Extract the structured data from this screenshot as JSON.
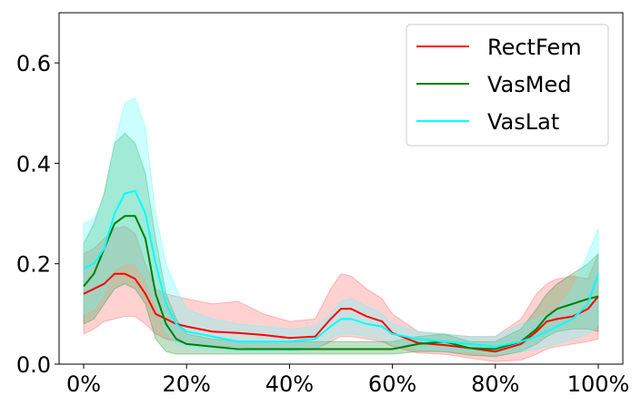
{
  "chart_data": {
    "type": "line",
    "title": "",
    "xlabel": "",
    "ylabel": "",
    "xlim": [
      0,
      100
    ],
    "ylim": [
      0,
      0.7
    ],
    "x_ticks": [
      0,
      20,
      40,
      60,
      80,
      100
    ],
    "x_tick_labels": [
      "0%",
      "20%",
      "40%",
      "60%",
      "80%",
      "100%"
    ],
    "y_ticks": [
      0.0,
      0.2,
      0.4,
      0.6
    ],
    "y_tick_labels": [
      "0.0",
      "0.2",
      "0.4",
      "0.6"
    ],
    "grid": false,
    "legend_position": "top-right",
    "x": [
      0,
      2,
      4,
      6,
      8,
      10,
      12,
      14,
      16,
      18,
      20,
      25,
      30,
      35,
      40,
      45,
      48,
      50,
      52,
      55,
      58,
      60,
      65,
      70,
      75,
      80,
      85,
      88,
      90,
      92,
      95,
      98,
      100
    ],
    "series": [
      {
        "name": "RectFem",
        "color": "#ff0000",
        "band_color": "#ff6666",
        "values": [
          0.14,
          0.15,
          0.16,
          0.18,
          0.18,
          0.17,
          0.14,
          0.1,
          0.09,
          0.08,
          0.075,
          0.065,
          0.062,
          0.058,
          0.052,
          0.055,
          0.09,
          0.11,
          0.11,
          0.095,
          0.085,
          0.062,
          0.042,
          0.038,
          0.032,
          0.025,
          0.04,
          0.065,
          0.085,
          0.09,
          0.095,
          0.11,
          0.135
        ],
        "lower": [
          0.06,
          0.07,
          0.085,
          0.09,
          0.095,
          0.095,
          0.08,
          0.06,
          0.05,
          0.045,
          0.04,
          0.035,
          0.035,
          0.03,
          0.028,
          0.03,
          0.045,
          0.055,
          0.055,
          0.05,
          0.045,
          0.035,
          0.022,
          0.02,
          0.012,
          0.005,
          0.008,
          0.02,
          0.03,
          0.035,
          0.04,
          0.045,
          0.05
        ],
        "upper": [
          0.22,
          0.23,
          0.25,
          0.27,
          0.275,
          0.26,
          0.2,
          0.15,
          0.14,
          0.135,
          0.13,
          0.12,
          0.125,
          0.1,
          0.085,
          0.09,
          0.15,
          0.18,
          0.175,
          0.15,
          0.13,
          0.1,
          0.065,
          0.06,
          0.055,
          0.055,
          0.09,
          0.14,
          0.16,
          0.17,
          0.175,
          0.17,
          0.22
        ]
      },
      {
        "name": "VasMed",
        "color": "#008000",
        "band_color": "#2e9b3e",
        "values": [
          0.155,
          0.18,
          0.23,
          0.28,
          0.295,
          0.295,
          0.25,
          0.14,
          0.08,
          0.05,
          0.04,
          0.035,
          0.03,
          0.03,
          0.03,
          0.03,
          0.03,
          0.03,
          0.03,
          0.03,
          0.03,
          0.03,
          0.04,
          0.045,
          0.032,
          0.03,
          0.045,
          0.07,
          0.095,
          0.11,
          0.12,
          0.13,
          0.135
        ],
        "lower": [
          0.08,
          0.09,
          0.12,
          0.15,
          0.16,
          0.15,
          0.12,
          0.05,
          0.025,
          0.02,
          0.02,
          0.02,
          0.02,
          0.02,
          0.02,
          0.02,
          0.02,
          0.02,
          0.02,
          0.02,
          0.02,
          0.02,
          0.025,
          0.025,
          0.018,
          0.015,
          0.025,
          0.04,
          0.055,
          0.065,
          0.07,
          0.07,
          0.065
        ],
        "upper": [
          0.24,
          0.28,
          0.34,
          0.44,
          0.46,
          0.44,
          0.38,
          0.25,
          0.14,
          0.09,
          0.06,
          0.05,
          0.045,
          0.045,
          0.045,
          0.045,
          0.045,
          0.045,
          0.045,
          0.045,
          0.045,
          0.045,
          0.055,
          0.06,
          0.045,
          0.045,
          0.07,
          0.11,
          0.14,
          0.16,
          0.18,
          0.2,
          0.22
        ]
      },
      {
        "name": "VasLat",
        "color": "#00ffff",
        "band_color": "#55ffff",
        "values": [
          0.19,
          0.2,
          0.23,
          0.3,
          0.34,
          0.345,
          0.3,
          0.2,
          0.12,
          0.08,
          0.065,
          0.055,
          0.045,
          0.045,
          0.045,
          0.05,
          0.075,
          0.09,
          0.09,
          0.08,
          0.075,
          0.06,
          0.05,
          0.045,
          0.04,
          0.035,
          0.045,
          0.055,
          0.065,
          0.075,
          0.09,
          0.12,
          0.18
        ],
        "lower": [
          0.1,
          0.11,
          0.14,
          0.19,
          0.2,
          0.2,
          0.17,
          0.12,
          0.065,
          0.04,
          0.035,
          0.03,
          0.025,
          0.025,
          0.025,
          0.03,
          0.05,
          0.06,
          0.06,
          0.055,
          0.05,
          0.04,
          0.03,
          0.028,
          0.025,
          0.02,
          0.025,
          0.03,
          0.035,
          0.04,
          0.05,
          0.06,
          0.08
        ],
        "upper": [
          0.28,
          0.29,
          0.33,
          0.44,
          0.52,
          0.53,
          0.47,
          0.3,
          0.2,
          0.15,
          0.11,
          0.09,
          0.08,
          0.075,
          0.07,
          0.075,
          0.1,
          0.125,
          0.13,
          0.115,
          0.1,
          0.08,
          0.065,
          0.06,
          0.055,
          0.055,
          0.08,
          0.09,
          0.1,
          0.11,
          0.15,
          0.22,
          0.27
        ]
      }
    ]
  }
}
